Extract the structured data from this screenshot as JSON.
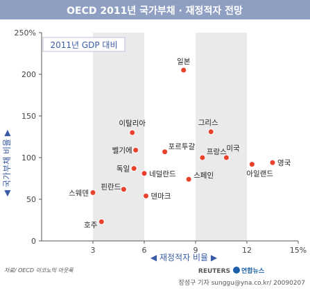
{
  "header": {
    "title": "OECD 2011년 국가부채 · 재정적자 전망"
  },
  "chart_data": {
    "type": "scatter",
    "title": "OECD 2011년 국가부채 · 재정적자 전망",
    "subtitle": "2011년 GDP 대비",
    "xlabel": "◀ 재정적자 비율 ▶",
    "ylabel": "◀ 국가부채 비율 ▶",
    "xlim": [
      0,
      15
    ],
    "ylim": [
      0,
      250
    ],
    "x_ticks": [
      "3",
      "6",
      "9",
      "12",
      "15%"
    ],
    "y_ticks": [
      "0",
      "50",
      "100",
      "150",
      "200",
      "250%"
    ],
    "grid": "alternating vertical bands",
    "points": [
      {
        "label": "일본",
        "x": 8.3,
        "y": 205
      },
      {
        "label": "이탈리아",
        "x": 5.3,
        "y": 130
      },
      {
        "label": "그리스",
        "x": 9.9,
        "y": 131
      },
      {
        "label": "벨기에",
        "x": 5.5,
        "y": 109
      },
      {
        "label": "포르투갈",
        "x": 7.2,
        "y": 107
      },
      {
        "label": "프랑스",
        "x": 9.4,
        "y": 100
      },
      {
        "label": "미국",
        "x": 10.8,
        "y": 100
      },
      {
        "label": "독일",
        "x": 5.4,
        "y": 87
      },
      {
        "label": "네덜란드",
        "x": 6.0,
        "y": 81
      },
      {
        "label": "아일랜드",
        "x": 12.3,
        "y": 92
      },
      {
        "label": "영국",
        "x": 13.5,
        "y": 94
      },
      {
        "label": "스페인",
        "x": 8.6,
        "y": 74
      },
      {
        "label": "스웨덴",
        "x": 3.0,
        "y": 58
      },
      {
        "label": "핀란드",
        "x": 4.8,
        "y": 62
      },
      {
        "label": "덴마크",
        "x": 6.1,
        "y": 54
      },
      {
        "label": "호주",
        "x": 3.5,
        "y": 23
      }
    ],
    "colors": {
      "point": "#e8412c",
      "band": "#eaeaea",
      "title_bar": "#8f9fc1",
      "axis_label": "#3a5ba5",
      "subtitle_text": "#3a5ba5"
    }
  },
  "footer": {
    "source": "자료/ OECD 이코노믹 아웃룩",
    "brand_reuters": "REUTERS",
    "brand_yonhap": "연합뉴스",
    "credit": "장성구 기자  sunggu@yna.co.kr/ 20090207"
  }
}
